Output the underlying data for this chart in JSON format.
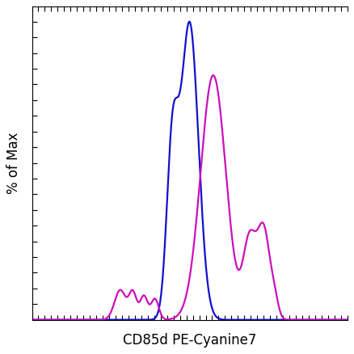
{
  "xlabel": "CD85d PE-Cyanine7",
  "ylabel": "% of Max",
  "xlim": [
    0,
    1
  ],
  "ylim": [
    0,
    1.05
  ],
  "blue_color": "#1010cc",
  "magenta_color": "#cc10bb",
  "bg_color": "#ffffff",
  "xlabel_fontsize": 12,
  "ylabel_fontsize": 12,
  "linewidth": 1.6,
  "figsize": [
    4.38,
    4.38
  ],
  "dpi": 100
}
